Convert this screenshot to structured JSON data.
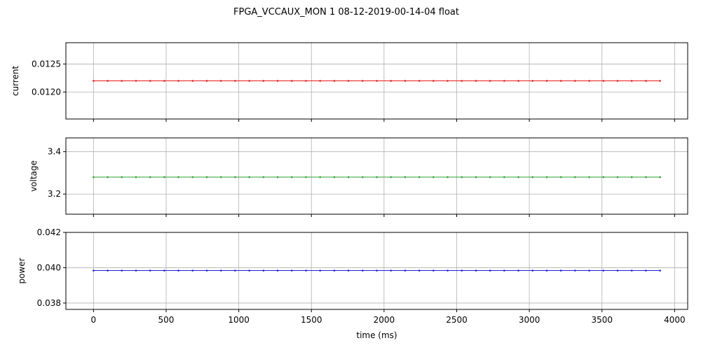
{
  "title": "FPGA_VCCAUX_MON   1   08-12-2019-00-14-04   float",
  "chart_data": [
    {
      "type": "line",
      "ylabel": "current",
      "color": "#e41a1c",
      "xlim": [
        -190,
        4090
      ],
      "ylim": [
        0.01152,
        0.01288
      ],
      "yticks": [
        0.012,
        0.0125
      ],
      "ytick_labels": [
        "0.0120",
        "0.0125"
      ],
      "xticks": [
        0,
        500,
        1000,
        1500,
        2000,
        2500,
        3000,
        3500,
        4000
      ],
      "xtick_labels": [],
      "grid": true,
      "x": [
        0,
        97.5,
        195,
        292.5,
        390,
        487.5,
        585,
        682.5,
        780,
        877.5,
        975,
        1072.5,
        1170,
        1267.5,
        1365,
        1462.5,
        1560,
        1657.5,
        1755,
        1852.5,
        1950,
        2047.5,
        2145,
        2242.5,
        2340,
        2437.5,
        2535,
        2632.5,
        2730,
        2827.5,
        2925,
        3022.5,
        3120,
        3217.5,
        3315,
        3412.5,
        3510,
        3607.5,
        3705,
        3802.5,
        3900
      ],
      "y_constant": 0.0122
    },
    {
      "type": "line",
      "ylabel": "voltage",
      "color": "#2ca02c",
      "xlim": [
        -190,
        4090
      ],
      "ylim": [
        3.105,
        3.465
      ],
      "yticks": [
        3.2,
        3.4
      ],
      "ytick_labels": [
        "3.2",
        "3.4"
      ],
      "xticks": [
        0,
        500,
        1000,
        1500,
        2000,
        2500,
        3000,
        3500,
        4000
      ],
      "xtick_labels": [],
      "grid": true,
      "x": [
        0,
        97.5,
        195,
        292.5,
        390,
        487.5,
        585,
        682.5,
        780,
        877.5,
        975,
        1072.5,
        1170,
        1267.5,
        1365,
        1462.5,
        1560,
        1657.5,
        1755,
        1852.5,
        1950,
        2047.5,
        2145,
        2242.5,
        2340,
        2437.5,
        2535,
        2632.5,
        2730,
        2827.5,
        2925,
        3022.5,
        3120,
        3217.5,
        3315,
        3412.5,
        3510,
        3607.5,
        3705,
        3802.5,
        3900
      ],
      "y_constant": 3.28
    },
    {
      "type": "line",
      "ylabel": "power",
      "xlabel": "time (ms)",
      "color": "#1f1fd6",
      "xlim": [
        -190,
        4090
      ],
      "ylim": [
        0.03764,
        0.042
      ],
      "yticks": [
        0.038,
        0.04,
        0.042
      ],
      "ytick_labels": [
        "0.038",
        "0.040",
        "0.042"
      ],
      "xticks": [
        0,
        500,
        1000,
        1500,
        2000,
        2500,
        3000,
        3500,
        4000
      ],
      "xtick_labels": [
        "0",
        "500",
        "1000",
        "1500",
        "2000",
        "2500",
        "3000",
        "3500",
        "4000"
      ],
      "grid": true,
      "x": [
        0,
        97.5,
        195,
        292.5,
        390,
        487.5,
        585,
        682.5,
        780,
        877.5,
        975,
        1072.5,
        1170,
        1267.5,
        1365,
        1462.5,
        1560,
        1657.5,
        1755,
        1852.5,
        1950,
        2047.5,
        2145,
        2242.5,
        2340,
        2437.5,
        2535,
        2632.5,
        2730,
        2827.5,
        2925,
        3022.5,
        3120,
        3217.5,
        3315,
        3412.5,
        3510,
        3607.5,
        3705,
        3802.5,
        3900
      ],
      "y_constant": 0.03984
    }
  ]
}
